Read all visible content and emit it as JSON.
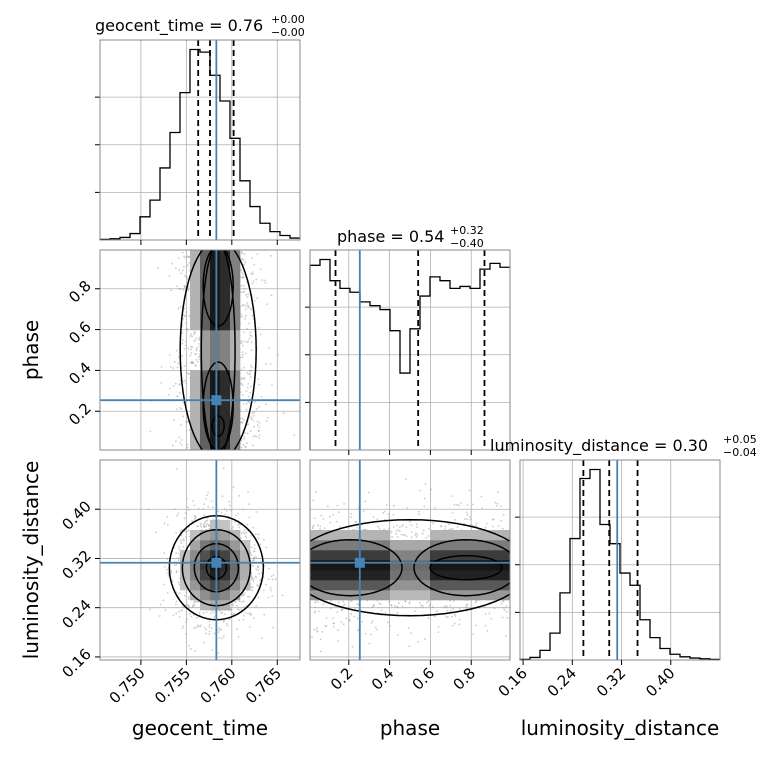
{
  "chart_data": {
    "type": "corner",
    "parameters": [
      "geocent_time",
      "phase",
      "luminosity_distance"
    ],
    "axis_labels": {
      "geocent_time": "geocent_time",
      "phase": "phase",
      "luminosity_distance": "luminosity_distance"
    },
    "ranges": {
      "geocent_time": [
        0.7455,
        0.7675
      ],
      "phase": [
        0.01,
        0.99
      ],
      "luminosity_distance": [
        0.155,
        0.48
      ]
    },
    "ticks": {
      "geocent_time": [
        0.75,
        0.755,
        0.76,
        0.765
      ],
      "phase": [
        0.2,
        0.4,
        0.6,
        0.8
      ],
      "luminosity_distance": [
        0.16,
        0.24,
        0.32,
        0.4
      ]
    },
    "tick_labels": {
      "geocent_time": [
        "0.750",
        "0.755",
        "0.760",
        "0.765"
      ],
      "phase": [
        "0.2",
        "0.4",
        "0.6",
        "0.8"
      ],
      "luminosity_distance": [
        "0.16",
        "0.24",
        "0.32",
        "0.40"
      ]
    },
    "titles": {
      "geocent_time": {
        "main": "geocent_time = 0.76",
        "sup": "+0.00",
        "sub": "−0.00"
      },
      "phase": {
        "main": "phase = 0.54",
        "sup": "+0.32",
        "sub": "−0.40"
      },
      "luminosity_distance": {
        "main": "luminosity_distance = 0.30",
        "sup": "+0.05",
        "sub": "−0.04"
      }
    },
    "truths": {
      "geocent_time": 0.7583,
      "phase": 0.254,
      "luminosity_distance": 0.313
    },
    "quantiles": {
      "geocent_time": [
        0.7563,
        0.7576,
        0.7602
      ],
      "phase": [
        0.135,
        0.54,
        0.865
      ],
      "luminosity_distance": [
        0.258,
        0.3,
        0.346
      ]
    },
    "histograms_1d": {
      "geocent_time": {
        "edges": [
          0.7455,
          0.7466,
          0.7477,
          0.7488,
          0.7499,
          0.751,
          0.7521,
          0.7532,
          0.7543,
          0.7554,
          0.7565,
          0.7576,
          0.7587,
          0.7598,
          0.7609,
          0.762,
          0.7631,
          0.7642,
          0.7653,
          0.7664,
          0.7675
        ],
        "counts": [
          1,
          2,
          4,
          10,
          36,
          62,
          112,
          167,
          229,
          296,
          292,
          256,
          216,
          158,
          92,
          52,
          26,
          13,
          7,
          3
        ]
      },
      "phase": {
        "edges": [
          0.01,
          0.059,
          0.108,
          0.157,
          0.206,
          0.255,
          0.304,
          0.353,
          0.402,
          0.451,
          0.5,
          0.549,
          0.598,
          0.647,
          0.696,
          0.745,
          0.794,
          0.843,
          0.892,
          0.941,
          0.99
        ],
        "counts": [
          0.96,
          0.99,
          0.88,
          0.84,
          0.82,
          0.77,
          0.75,
          0.73,
          0.62,
          0.4,
          0.63,
          0.8,
          0.9,
          0.88,
          0.84,
          0.85,
          0.84,
          0.94,
          0.97,
          0.95
        ]
      },
      "luminosity_distance": {
        "edges": [
          0.155,
          0.17125,
          0.1875,
          0.20375,
          0.22,
          0.23625,
          0.2525,
          0.26875,
          0.285,
          0.30125,
          0.3175,
          0.33375,
          0.35,
          0.36625,
          0.3825,
          0.39875,
          0.415,
          0.43125,
          0.4475,
          0.46375,
          0.48
        ],
        "counts": [
          1,
          4,
          15,
          42,
          105,
          190,
          284,
          298,
          212,
          182,
          136,
          117,
          63,
          35,
          18,
          9,
          5,
          3,
          2,
          1
        ]
      }
    },
    "contour_levels": [
      0.118,
      0.393,
      0.675,
      0.865
    ]
  }
}
